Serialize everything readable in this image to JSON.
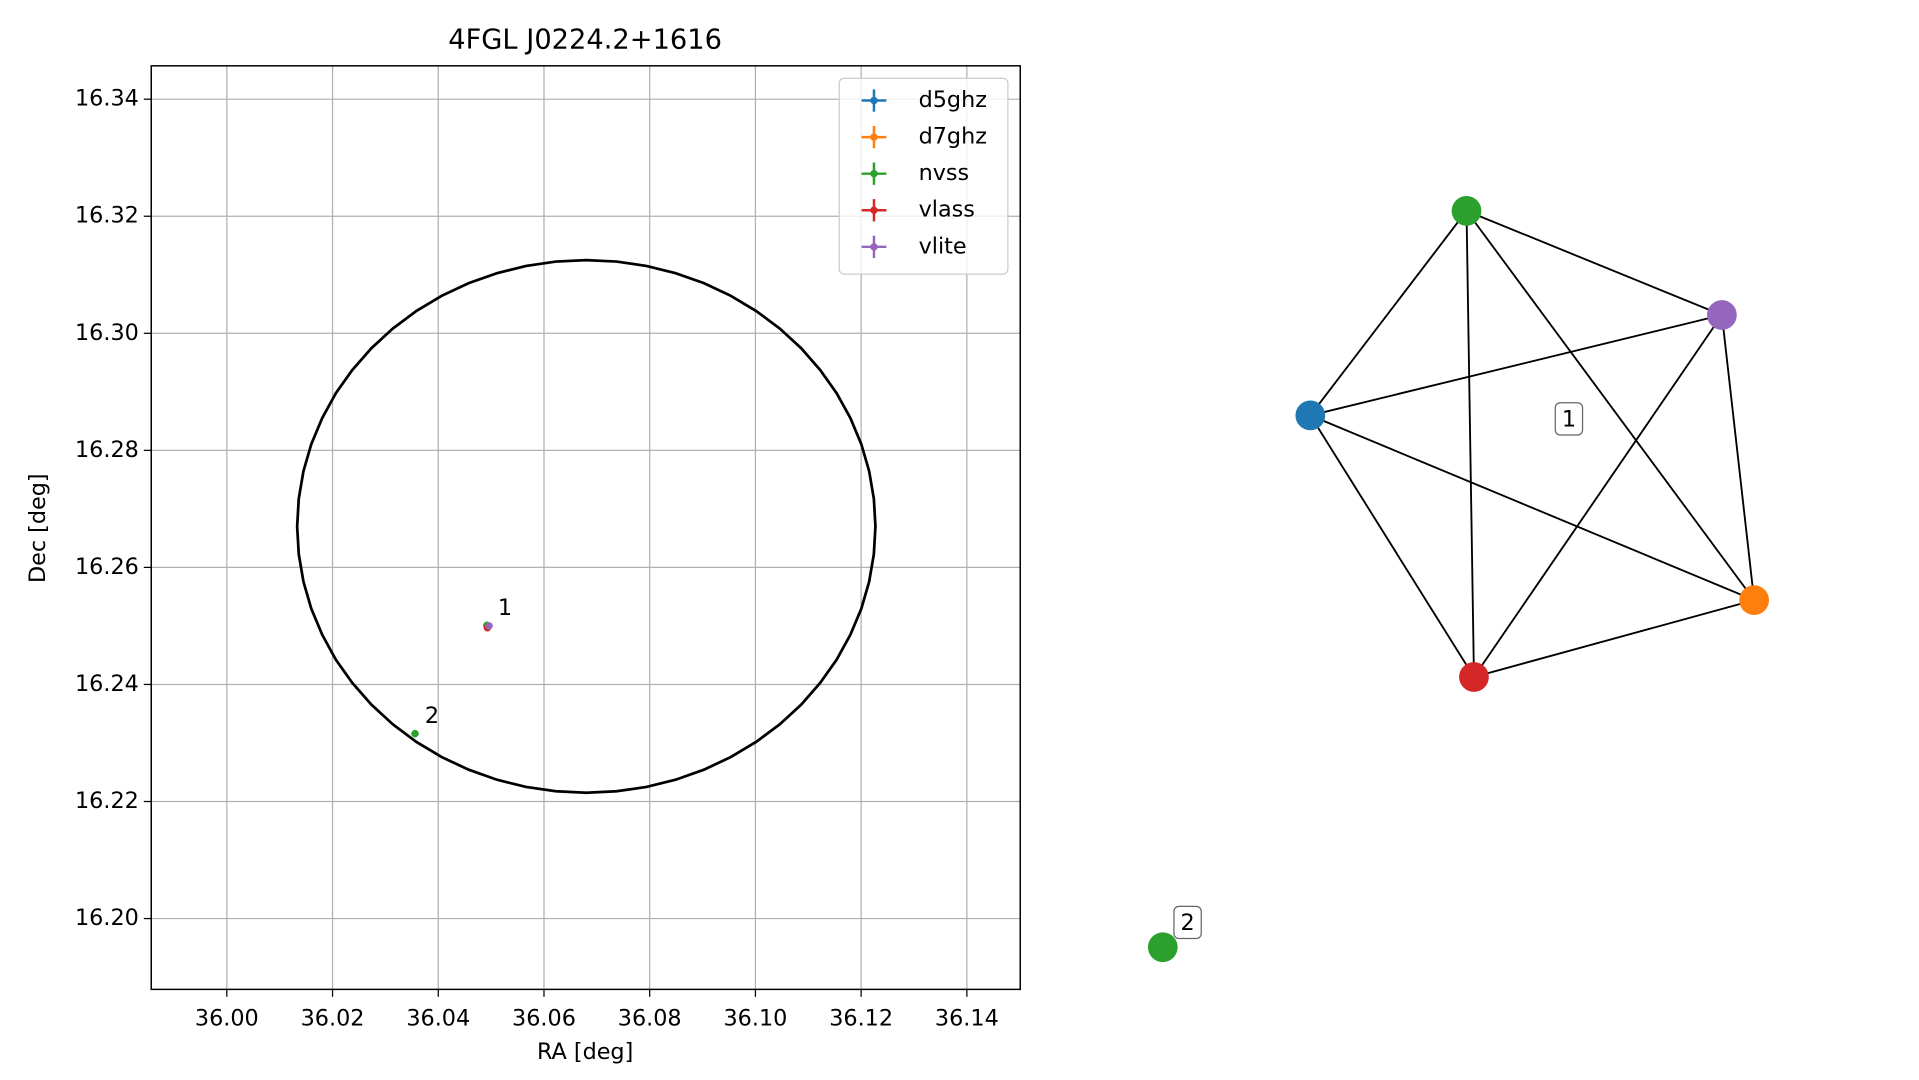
{
  "chart_data": [
    {
      "type": "scatter",
      "title": "4FGL J0224.2+1616",
      "xlabel": "RA [deg]",
      "ylabel": "Dec [deg]",
      "xlim": [
        35.9857,
        36.1501
      ],
      "ylim": [
        16.1879,
        16.3457
      ],
      "xticks": [
        {
          "value": 36,
          "label": "36.00"
        },
        36.02,
        36.04,
        36.06,
        36.08,
        {
          "value": 36.1,
          "label": "36.10"
        },
        36.12,
        36.14
      ],
      "yticks": [
        {
          "value": 16.2,
          "label": "16.20"
        },
        16.22,
        16.24,
        16.26,
        16.28,
        {
          "value": 16.3,
          "label": "16.30"
        },
        16.32,
        16.34
      ],
      "grid": true,
      "legend": "upper right",
      "ellipse": {
        "x": 36.068,
        "y": 16.267,
        "width": 0.1094,
        "height": 0.091,
        "color": "#000000"
      },
      "series": [
        {
          "name": "d5ghz",
          "color": "#1f77b4",
          "x": [
            36.0494
          ],
          "y": [
            16.25
          ]
        },
        {
          "name": "d7ghz",
          "color": "#ff7f0e",
          "x": [
            36.0495
          ],
          "y": [
            16.2499
          ]
        },
        {
          "name": "nvss",
          "color": "#2ca02c",
          "x": [
            36.0492,
            36.0356
          ],
          "y": [
            16.2501,
            16.2316
          ]
        },
        {
          "name": "vlass",
          "color": "#d62728",
          "x": [
            36.0493
          ],
          "y": [
            16.2497
          ]
        },
        {
          "name": "vlite",
          "color": "#9467bd",
          "x": [
            36.0496
          ],
          "y": [
            16.25
          ]
        }
      ],
      "annotations": [
        {
          "text": "1",
          "x": 36.0494,
          "y": 16.25
        },
        {
          "text": "2",
          "x": 36.0356,
          "y": 16.2316
        }
      ]
    },
    {
      "type": "network",
      "nodes": [
        {
          "color": "#1f77b4"
        },
        {
          "color": "#2ca02c"
        },
        {
          "color": "#9467bd"
        },
        {
          "color": "#ff7f0e"
        },
        {
          "color": "#d62728"
        },
        {
          "color": "#2ca02c"
        }
      ],
      "edges": [
        [
          0,
          1
        ],
        [
          0,
          2
        ],
        [
          0,
          3
        ],
        [
          0,
          4
        ],
        [
          1,
          2
        ],
        [
          1,
          3
        ],
        [
          1,
          4
        ],
        [
          2,
          3
        ],
        [
          2,
          4
        ],
        [
          3,
          4
        ]
      ],
      "groups": [
        {
          "label": "1",
          "nodes": [
            0,
            1,
            2,
            3,
            4
          ]
        },
        {
          "label": "2",
          "nodes": [
            5
          ]
        }
      ]
    }
  ]
}
